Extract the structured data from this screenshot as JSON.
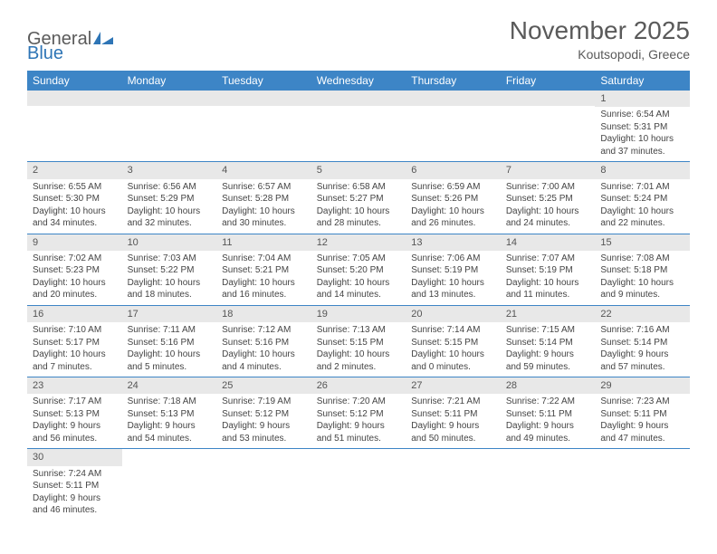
{
  "logo": {
    "general": "General",
    "blue": "Blue"
  },
  "title": "November 2025",
  "subtitle": "Koutsopodi, Greece",
  "colors": {
    "header_bg": "#3d85c6",
    "header_text": "#ffffff",
    "daynum_bg": "#e8e8e8",
    "cell_border": "#3d85c6",
    "body_text": "#444444",
    "title_text": "#5a5a5a",
    "logo_blue": "#2e75b6"
  },
  "weekdays": [
    "Sunday",
    "Monday",
    "Tuesday",
    "Wednesday",
    "Thursday",
    "Friday",
    "Saturday"
  ],
  "weeks": [
    [
      {
        "n": "",
        "sr": "",
        "ss": "",
        "dl": ""
      },
      {
        "n": "",
        "sr": "",
        "ss": "",
        "dl": ""
      },
      {
        "n": "",
        "sr": "",
        "ss": "",
        "dl": ""
      },
      {
        "n": "",
        "sr": "",
        "ss": "",
        "dl": ""
      },
      {
        "n": "",
        "sr": "",
        "ss": "",
        "dl": ""
      },
      {
        "n": "",
        "sr": "",
        "ss": "",
        "dl": ""
      },
      {
        "n": "1",
        "sr": "Sunrise: 6:54 AM",
        "ss": "Sunset: 5:31 PM",
        "dl": "Daylight: 10 hours and 37 minutes."
      }
    ],
    [
      {
        "n": "2",
        "sr": "Sunrise: 6:55 AM",
        "ss": "Sunset: 5:30 PM",
        "dl": "Daylight: 10 hours and 34 minutes."
      },
      {
        "n": "3",
        "sr": "Sunrise: 6:56 AM",
        "ss": "Sunset: 5:29 PM",
        "dl": "Daylight: 10 hours and 32 minutes."
      },
      {
        "n": "4",
        "sr": "Sunrise: 6:57 AM",
        "ss": "Sunset: 5:28 PM",
        "dl": "Daylight: 10 hours and 30 minutes."
      },
      {
        "n": "5",
        "sr": "Sunrise: 6:58 AM",
        "ss": "Sunset: 5:27 PM",
        "dl": "Daylight: 10 hours and 28 minutes."
      },
      {
        "n": "6",
        "sr": "Sunrise: 6:59 AM",
        "ss": "Sunset: 5:26 PM",
        "dl": "Daylight: 10 hours and 26 minutes."
      },
      {
        "n": "7",
        "sr": "Sunrise: 7:00 AM",
        "ss": "Sunset: 5:25 PM",
        "dl": "Daylight: 10 hours and 24 minutes."
      },
      {
        "n": "8",
        "sr": "Sunrise: 7:01 AM",
        "ss": "Sunset: 5:24 PM",
        "dl": "Daylight: 10 hours and 22 minutes."
      }
    ],
    [
      {
        "n": "9",
        "sr": "Sunrise: 7:02 AM",
        "ss": "Sunset: 5:23 PM",
        "dl": "Daylight: 10 hours and 20 minutes."
      },
      {
        "n": "10",
        "sr": "Sunrise: 7:03 AM",
        "ss": "Sunset: 5:22 PM",
        "dl": "Daylight: 10 hours and 18 minutes."
      },
      {
        "n": "11",
        "sr": "Sunrise: 7:04 AM",
        "ss": "Sunset: 5:21 PM",
        "dl": "Daylight: 10 hours and 16 minutes."
      },
      {
        "n": "12",
        "sr": "Sunrise: 7:05 AM",
        "ss": "Sunset: 5:20 PM",
        "dl": "Daylight: 10 hours and 14 minutes."
      },
      {
        "n": "13",
        "sr": "Sunrise: 7:06 AM",
        "ss": "Sunset: 5:19 PM",
        "dl": "Daylight: 10 hours and 13 minutes."
      },
      {
        "n": "14",
        "sr": "Sunrise: 7:07 AM",
        "ss": "Sunset: 5:19 PM",
        "dl": "Daylight: 10 hours and 11 minutes."
      },
      {
        "n": "15",
        "sr": "Sunrise: 7:08 AM",
        "ss": "Sunset: 5:18 PM",
        "dl": "Daylight: 10 hours and 9 minutes."
      }
    ],
    [
      {
        "n": "16",
        "sr": "Sunrise: 7:10 AM",
        "ss": "Sunset: 5:17 PM",
        "dl": "Daylight: 10 hours and 7 minutes."
      },
      {
        "n": "17",
        "sr": "Sunrise: 7:11 AM",
        "ss": "Sunset: 5:16 PM",
        "dl": "Daylight: 10 hours and 5 minutes."
      },
      {
        "n": "18",
        "sr": "Sunrise: 7:12 AM",
        "ss": "Sunset: 5:16 PM",
        "dl": "Daylight: 10 hours and 4 minutes."
      },
      {
        "n": "19",
        "sr": "Sunrise: 7:13 AM",
        "ss": "Sunset: 5:15 PM",
        "dl": "Daylight: 10 hours and 2 minutes."
      },
      {
        "n": "20",
        "sr": "Sunrise: 7:14 AM",
        "ss": "Sunset: 5:15 PM",
        "dl": "Daylight: 10 hours and 0 minutes."
      },
      {
        "n": "21",
        "sr": "Sunrise: 7:15 AM",
        "ss": "Sunset: 5:14 PM",
        "dl": "Daylight: 9 hours and 59 minutes."
      },
      {
        "n": "22",
        "sr": "Sunrise: 7:16 AM",
        "ss": "Sunset: 5:14 PM",
        "dl": "Daylight: 9 hours and 57 minutes."
      }
    ],
    [
      {
        "n": "23",
        "sr": "Sunrise: 7:17 AM",
        "ss": "Sunset: 5:13 PM",
        "dl": "Daylight: 9 hours and 56 minutes."
      },
      {
        "n": "24",
        "sr": "Sunrise: 7:18 AM",
        "ss": "Sunset: 5:13 PM",
        "dl": "Daylight: 9 hours and 54 minutes."
      },
      {
        "n": "25",
        "sr": "Sunrise: 7:19 AM",
        "ss": "Sunset: 5:12 PM",
        "dl": "Daylight: 9 hours and 53 minutes."
      },
      {
        "n": "26",
        "sr": "Sunrise: 7:20 AM",
        "ss": "Sunset: 5:12 PM",
        "dl": "Daylight: 9 hours and 51 minutes."
      },
      {
        "n": "27",
        "sr": "Sunrise: 7:21 AM",
        "ss": "Sunset: 5:11 PM",
        "dl": "Daylight: 9 hours and 50 minutes."
      },
      {
        "n": "28",
        "sr": "Sunrise: 7:22 AM",
        "ss": "Sunset: 5:11 PM",
        "dl": "Daylight: 9 hours and 49 minutes."
      },
      {
        "n": "29",
        "sr": "Sunrise: 7:23 AM",
        "ss": "Sunset: 5:11 PM",
        "dl": "Daylight: 9 hours and 47 minutes."
      }
    ],
    [
      {
        "n": "30",
        "sr": "Sunrise: 7:24 AM",
        "ss": "Sunset: 5:11 PM",
        "dl": "Daylight: 9 hours and 46 minutes."
      },
      {
        "n": "",
        "sr": "",
        "ss": "",
        "dl": ""
      },
      {
        "n": "",
        "sr": "",
        "ss": "",
        "dl": ""
      },
      {
        "n": "",
        "sr": "",
        "ss": "",
        "dl": ""
      },
      {
        "n": "",
        "sr": "",
        "ss": "",
        "dl": ""
      },
      {
        "n": "",
        "sr": "",
        "ss": "",
        "dl": ""
      },
      {
        "n": "",
        "sr": "",
        "ss": "",
        "dl": ""
      }
    ]
  ]
}
